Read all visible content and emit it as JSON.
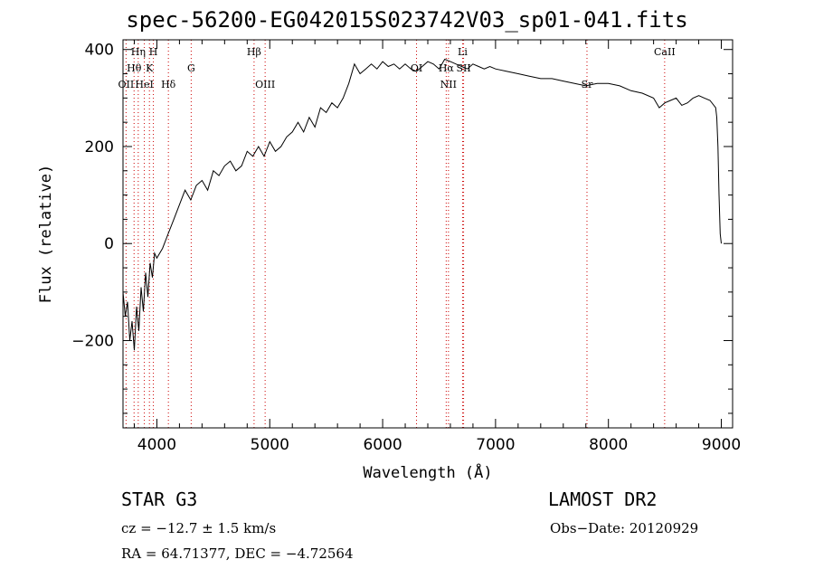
{
  "chart_data": {
    "type": "line",
    "title": "spec-56200-EG042015S023742V03_sp01-041.fits",
    "xlabel": "Wavelength (Å)",
    "ylabel": "Flux (relative)",
    "xlim": [
      3700,
      9100
    ],
    "ylim": [
      -380,
      420
    ],
    "xticks": [
      4000,
      5000,
      6000,
      7000,
      8000,
      9000
    ],
    "yticks": [
      -200,
      0,
      200,
      400
    ],
    "series": [
      {
        "x": [
          3700,
          3720,
          3740,
          3760,
          3780,
          3800,
          3820,
          3840,
          3860,
          3880,
          3900,
          3920,
          3940,
          3960,
          3980,
          4000,
          4050,
          4100,
          4150,
          4200,
          4250,
          4300,
          4350,
          4400,
          4450,
          4500,
          4550,
          4600,
          4650,
          4700,
          4750,
          4800,
          4850,
          4900,
          4950,
          5000,
          5050,
          5100,
          5150,
          5200,
          5250,
          5300,
          5350,
          5400,
          5450,
          5500,
          5550,
          5600,
          5650,
          5700,
          5750,
          5800,
          5850,
          5900,
          5950,
          6000,
          6050,
          6100,
          6150,
          6200,
          6250,
          6300,
          6350,
          6400,
          6450,
          6500,
          6550,
          6600,
          6650,
          6700,
          6750,
          6800,
          6850,
          6900,
          6950,
          7000,
          7100,
          7200,
          7300,
          7400,
          7500,
          7600,
          7700,
          7800,
          7900,
          8000,
          8100,
          8200,
          8300,
          8400,
          8450,
          8500,
          8550,
          8600,
          8650,
          8700,
          8750,
          8800,
          8850,
          8900,
          8950,
          8960,
          8970,
          8980,
          8990,
          9000
        ],
        "y": [
          -100,
          -150,
          -120,
          -200,
          -160,
          -220,
          -130,
          -180,
          -90,
          -140,
          -60,
          -110,
          -40,
          -70,
          -20,
          -30,
          -10,
          20,
          50,
          80,
          110,
          90,
          120,
          130,
          110,
          150,
          140,
          160,
          170,
          150,
          160,
          190,
          180,
          200,
          180,
          210,
          190,
          200,
          220,
          230,
          250,
          230,
          260,
          240,
          280,
          270,
          290,
          280,
          300,
          330,
          370,
          350,
          360,
          370,
          360,
          375,
          365,
          370,
          360,
          370,
          360,
          355,
          365,
          375,
          370,
          360,
          380,
          375,
          370,
          365,
          360,
          370,
          365,
          360,
          365,
          360,
          355,
          350,
          345,
          340,
          340,
          335,
          330,
          325,
          330,
          330,
          325,
          315,
          310,
          300,
          280,
          290,
          295,
          300,
          285,
          290,
          300,
          305,
          300,
          295,
          280,
          260,
          200,
          100,
          20,
          0
        ]
      }
    ],
    "lines": [
      {
        "name": "Hη",
        "x": 3835,
        "row": 0
      },
      {
        "name": "H",
        "x": 3969,
        "row": 0
      },
      {
        "name": "Hθ",
        "x": 3798,
        "row": 1
      },
      {
        "name": "K",
        "x": 3934,
        "row": 1
      },
      {
        "name": "G",
        "x": 4304,
        "row": 1
      },
      {
        "name": "OII",
        "x": 3727,
        "row": 2
      },
      {
        "name": "HeI",
        "x": 3889,
        "row": 2
      },
      {
        "name": "Hδ",
        "x": 4102,
        "row": 2
      },
      {
        "name": "Hβ",
        "x": 4861,
        "row": 0
      },
      {
        "name": "OIII",
        "x": 4959,
        "row": 2
      },
      {
        "name": "OI",
        "x": 6300,
        "row": 1
      },
      {
        "name": "Hα",
        "x": 6563,
        "row": 1
      },
      {
        "name": "SII",
        "x": 6717,
        "row": 1
      },
      {
        "name": "NII",
        "x": 6583,
        "row": 2
      },
      {
        "name": "Li",
        "x": 6708,
        "row": 0
      },
      {
        "name": "Sr",
        "x": 7810,
        "row": 2
      },
      {
        "name": "CaII",
        "x": 8498,
        "row": 0
      }
    ],
    "grid": false,
    "colors": {
      "line": "#000000",
      "marker": "#cc0000"
    }
  },
  "info": {
    "classification": "STAR    G3",
    "cz": "cz = −12.7 ± 1.5 km/s",
    "radec": "RA =  64.71377, DEC =  −4.72564",
    "survey": "LAMOST DR2",
    "obs_date": "Obs−Date: 20120929"
  }
}
